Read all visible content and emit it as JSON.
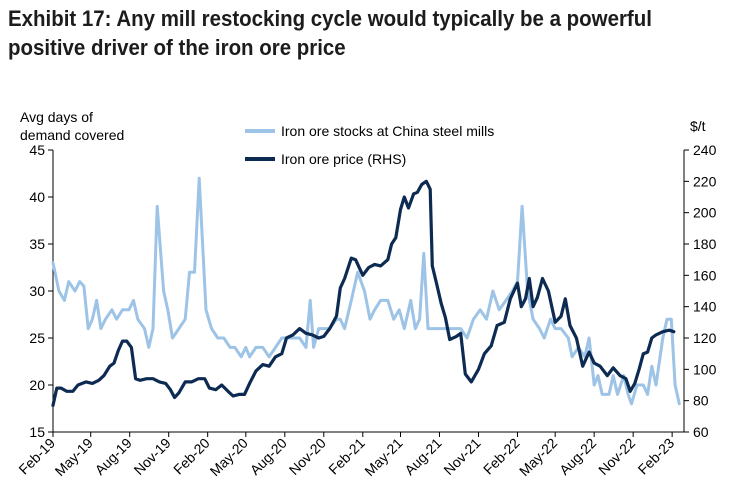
{
  "title_line1": "Exhibit 17: Any mill restocking cycle would typically be a powerful",
  "title_line2": "positive driver of the iron ore price",
  "chart_data": {
    "type": "line",
    "ylabel_left_line1": "Avg days of",
    "ylabel_left_line2": "demand covered",
    "ylabel_right": "$/t",
    "ylim_left": [
      15,
      45
    ],
    "ylim_right": [
      60,
      240
    ],
    "yticks_left": [
      "15",
      "20",
      "25",
      "30",
      "35",
      "40",
      "45"
    ],
    "yticks_right": [
      "60",
      "80",
      "100",
      "120",
      "140",
      "160",
      "180",
      "200",
      "220",
      "240"
    ],
    "xlim": [
      "2019-02-01",
      "2023-03-01"
    ],
    "xticks": [
      {
        "label": "Feb-19",
        "date": "2019-02-01"
      },
      {
        "label": "May-19",
        "date": "2019-05-01"
      },
      {
        "label": "Aug-19",
        "date": "2019-08-01"
      },
      {
        "label": "Nov-19",
        "date": "2019-11-01"
      },
      {
        "label": "Feb-20",
        "date": "2020-02-01"
      },
      {
        "label": "May-20",
        "date": "2020-05-01"
      },
      {
        "label": "Aug-20",
        "date": "2020-08-01"
      },
      {
        "label": "Nov-20",
        "date": "2020-11-01"
      },
      {
        "label": "Feb-21",
        "date": "2021-02-01"
      },
      {
        "label": "May-21",
        "date": "2021-05-01"
      },
      {
        "label": "Aug-21",
        "date": "2021-08-01"
      },
      {
        "label": "Nov-21",
        "date": "2021-11-01"
      },
      {
        "label": "Feb-22",
        "date": "2022-02-01"
      },
      {
        "label": "May-22",
        "date": "2022-05-01"
      },
      {
        "label": "Aug-22",
        "date": "2022-08-01"
      },
      {
        "label": "Nov-22",
        "date": "2022-11-01"
      },
      {
        "label": "Feb-23",
        "date": "2023-02-01"
      }
    ],
    "grid": false,
    "legend_position": "top-center",
    "series": [
      {
        "name": "Iron ore stocks at China steel mills",
        "axis": "left",
        "color": "#9dc3e6",
        "points": [
          [
            "2019-02-01",
            33
          ],
          [
            "2019-02-15",
            30
          ],
          [
            "2019-02-28",
            29
          ],
          [
            "2019-03-10",
            31
          ],
          [
            "2019-03-25",
            30
          ],
          [
            "2019-04-05",
            31
          ],
          [
            "2019-04-15",
            30.5
          ],
          [
            "2019-04-25",
            26
          ],
          [
            "2019-05-05",
            27
          ],
          [
            "2019-05-15",
            29
          ],
          [
            "2019-05-25",
            26
          ],
          [
            "2019-06-05",
            27
          ],
          [
            "2019-06-20",
            28
          ],
          [
            "2019-07-01",
            27
          ],
          [
            "2019-07-15",
            28
          ],
          [
            "2019-07-30",
            28
          ],
          [
            "2019-08-10",
            29
          ],
          [
            "2019-08-20",
            27
          ],
          [
            "2019-09-05",
            26
          ],
          [
            "2019-09-15",
            24
          ],
          [
            "2019-09-25",
            26
          ],
          [
            "2019-10-05",
            39
          ],
          [
            "2019-10-20",
            30
          ],
          [
            "2019-10-30",
            28
          ],
          [
            "2019-11-10",
            25
          ],
          [
            "2019-11-25",
            26
          ],
          [
            "2019-12-10",
            27
          ],
          [
            "2019-12-20",
            32
          ],
          [
            "2020-01-01",
            32
          ],
          [
            "2020-01-12",
            42
          ],
          [
            "2020-01-20",
            35
          ],
          [
            "2020-01-28",
            28
          ],
          [
            "2020-02-10",
            26
          ],
          [
            "2020-02-25",
            25
          ],
          [
            "2020-03-10",
            25
          ],
          [
            "2020-03-25",
            24
          ],
          [
            "2020-04-05",
            24
          ],
          [
            "2020-04-20",
            23
          ],
          [
            "2020-05-01",
            24
          ],
          [
            "2020-05-10",
            23
          ],
          [
            "2020-05-25",
            24
          ],
          [
            "2020-06-10",
            24
          ],
          [
            "2020-06-25",
            23
          ],
          [
            "2020-07-10",
            24
          ],
          [
            "2020-07-25",
            25
          ],
          [
            "2020-08-05",
            25
          ],
          [
            "2020-08-20",
            25
          ],
          [
            "2020-09-05",
            25
          ],
          [
            "2020-09-20",
            24
          ],
          [
            "2020-09-30",
            29
          ],
          [
            "2020-10-08",
            24
          ],
          [
            "2020-10-20",
            26
          ],
          [
            "2020-11-01",
            26
          ],
          [
            "2020-11-15",
            26
          ],
          [
            "2020-12-01",
            27
          ],
          [
            "2020-12-10",
            27
          ],
          [
            "2020-12-20",
            26
          ],
          [
            "2021-01-05",
            29
          ],
          [
            "2021-01-20",
            32
          ],
          [
            "2021-02-05",
            30
          ],
          [
            "2021-02-18",
            27
          ],
          [
            "2021-03-01",
            28
          ],
          [
            "2021-03-15",
            29
          ],
          [
            "2021-04-01",
            29
          ],
          [
            "2021-04-15",
            27
          ],
          [
            "2021-04-28",
            28
          ],
          [
            "2021-05-10",
            26
          ],
          [
            "2021-05-25",
            29
          ],
          [
            "2021-06-05",
            26
          ],
          [
            "2021-06-15",
            27
          ],
          [
            "2021-06-25",
            34
          ],
          [
            "2021-07-05",
            26
          ],
          [
            "2021-07-20",
            26
          ],
          [
            "2021-08-05",
            26
          ],
          [
            "2021-08-20",
            26
          ],
          [
            "2021-09-05",
            26
          ],
          [
            "2021-09-20",
            26
          ],
          [
            "2021-10-05",
            25
          ],
          [
            "2021-10-20",
            27
          ],
          [
            "2021-11-05",
            28
          ],
          [
            "2021-11-20",
            27
          ],
          [
            "2021-12-05",
            30
          ],
          [
            "2021-12-20",
            28
          ],
          [
            "2022-01-05",
            29
          ],
          [
            "2022-01-20",
            30
          ],
          [
            "2022-02-01",
            31
          ],
          [
            "2022-02-12",
            39
          ],
          [
            "2022-02-25",
            30
          ],
          [
            "2022-03-10",
            27
          ],
          [
            "2022-03-25",
            26
          ],
          [
            "2022-04-05",
            25
          ],
          [
            "2022-04-20",
            27
          ],
          [
            "2022-05-01",
            26
          ],
          [
            "2022-05-15",
            26
          ],
          [
            "2022-06-01",
            25
          ],
          [
            "2022-06-10",
            23
          ],
          [
            "2022-06-25",
            24
          ],
          [
            "2022-07-10",
            23
          ],
          [
            "2022-07-20",
            25
          ],
          [
            "2022-08-01",
            20
          ],
          [
            "2022-08-10",
            21
          ],
          [
            "2022-08-20",
            19
          ],
          [
            "2022-09-05",
            19
          ],
          [
            "2022-09-15",
            21
          ],
          [
            "2022-09-25",
            19
          ],
          [
            "2022-10-10",
            21
          ],
          [
            "2022-10-20",
            19
          ],
          [
            "2022-10-28",
            18
          ],
          [
            "2022-11-10",
            20
          ],
          [
            "2022-11-25",
            20
          ],
          [
            "2022-12-05",
            19
          ],
          [
            "2022-12-15",
            22
          ],
          [
            "2022-12-25",
            20
          ],
          [
            "2023-01-10",
            25
          ],
          [
            "2023-01-20",
            27
          ],
          [
            "2023-01-30",
            27
          ],
          [
            "2023-02-08",
            20
          ],
          [
            "2023-02-18",
            18
          ]
        ]
      },
      {
        "name": "Iron ore price (RHS)",
        "axis": "right",
        "color": "#0d2b52",
        "points": [
          [
            "2019-02-01",
            77
          ],
          [
            "2019-02-10",
            88
          ],
          [
            "2019-02-20",
            88
          ],
          [
            "2019-03-05",
            86
          ],
          [
            "2019-03-20",
            86
          ],
          [
            "2019-04-01",
            90
          ],
          [
            "2019-04-20",
            92
          ],
          [
            "2019-05-05",
            91
          ],
          [
            "2019-05-20",
            93
          ],
          [
            "2019-06-01",
            96
          ],
          [
            "2019-06-15",
            102
          ],
          [
            "2019-06-25",
            104
          ],
          [
            "2019-07-05",
            112
          ],
          [
            "2019-07-15",
            118
          ],
          [
            "2019-07-25",
            118
          ],
          [
            "2019-08-05",
            114
          ],
          [
            "2019-08-15",
            94
          ],
          [
            "2019-08-25",
            93
          ],
          [
            "2019-09-10",
            94
          ],
          [
            "2019-09-25",
            94
          ],
          [
            "2019-10-10",
            92
          ],
          [
            "2019-10-25",
            91
          ],
          [
            "2019-11-05",
            87
          ],
          [
            "2019-11-15",
            82
          ],
          [
            "2019-11-25",
            85
          ],
          [
            "2019-12-10",
            92
          ],
          [
            "2019-12-25",
            92
          ],
          [
            "2020-01-10",
            94
          ],
          [
            "2020-01-25",
            94
          ],
          [
            "2020-02-05",
            88
          ],
          [
            "2020-02-20",
            87
          ],
          [
            "2020-03-05",
            90
          ],
          [
            "2020-03-20",
            86
          ],
          [
            "2020-04-01",
            83
          ],
          [
            "2020-04-15",
            84
          ],
          [
            "2020-04-28",
            84
          ],
          [
            "2020-05-10",
            91
          ],
          [
            "2020-05-25",
            99
          ],
          [
            "2020-06-10",
            103
          ],
          [
            "2020-06-25",
            102
          ],
          [
            "2020-07-10",
            108
          ],
          [
            "2020-07-25",
            110
          ],
          [
            "2020-08-05",
            120
          ],
          [
            "2020-08-20",
            122
          ],
          [
            "2020-09-05",
            126
          ],
          [
            "2020-09-20",
            123
          ],
          [
            "2020-10-05",
            122
          ],
          [
            "2020-10-20",
            120
          ],
          [
            "2020-11-01",
            121
          ],
          [
            "2020-11-15",
            126
          ],
          [
            "2020-12-01",
            134
          ],
          [
            "2020-12-10",
            152
          ],
          [
            "2020-12-20",
            158
          ],
          [
            "2021-01-05",
            171
          ],
          [
            "2021-01-15",
            170
          ],
          [
            "2021-02-01",
            160
          ],
          [
            "2021-02-15",
            165
          ],
          [
            "2021-03-01",
            167
          ],
          [
            "2021-03-15",
            166
          ],
          [
            "2021-04-01",
            170
          ],
          [
            "2021-04-10",
            180
          ],
          [
            "2021-04-20",
            184
          ],
          [
            "2021-05-01",
            202
          ],
          [
            "2021-05-10",
            210
          ],
          [
            "2021-05-20",
            203
          ],
          [
            "2021-06-01",
            212
          ],
          [
            "2021-06-10",
            213
          ],
          [
            "2021-06-20",
            218
          ],
          [
            "2021-07-01",
            220
          ],
          [
            "2021-07-10",
            215
          ],
          [
            "2021-07-15",
            166
          ],
          [
            "2021-07-25",
            155
          ],
          [
            "2021-08-05",
            142
          ],
          [
            "2021-08-15",
            133
          ],
          [
            "2021-08-25",
            119
          ],
          [
            "2021-09-10",
            121
          ],
          [
            "2021-09-20",
            123
          ],
          [
            "2021-10-01",
            97
          ],
          [
            "2021-10-15",
            92
          ],
          [
            "2021-11-01",
            100
          ],
          [
            "2021-11-15",
            110
          ],
          [
            "2021-12-01",
            115
          ],
          [
            "2021-12-15",
            128
          ],
          [
            "2022-01-01",
            130
          ],
          [
            "2022-01-15",
            145
          ],
          [
            "2022-02-01",
            155
          ],
          [
            "2022-02-10",
            140
          ],
          [
            "2022-02-20",
            145
          ],
          [
            "2022-03-01",
            158
          ],
          [
            "2022-03-10",
            140
          ],
          [
            "2022-03-20",
            146
          ],
          [
            "2022-04-01",
            158
          ],
          [
            "2022-04-15",
            150
          ],
          [
            "2022-05-01",
            130
          ],
          [
            "2022-05-15",
            134
          ],
          [
            "2022-05-25",
            145
          ],
          [
            "2022-06-05",
            128
          ],
          [
            "2022-06-20",
            120
          ],
          [
            "2022-07-05",
            102
          ],
          [
            "2022-07-20",
            111
          ],
          [
            "2022-08-01",
            104
          ],
          [
            "2022-08-15",
            102
          ],
          [
            "2022-09-01",
            96
          ],
          [
            "2022-09-15",
            101
          ],
          [
            "2022-10-01",
            96
          ],
          [
            "2022-10-15",
            94
          ],
          [
            "2022-10-25",
            86
          ],
          [
            "2022-11-05",
            91
          ],
          [
            "2022-11-15",
            100
          ],
          [
            "2022-11-25",
            110
          ],
          [
            "2022-12-05",
            111
          ],
          [
            "2022-12-15",
            120
          ],
          [
            "2022-12-25",
            122
          ],
          [
            "2023-01-10",
            124
          ],
          [
            "2023-01-25",
            125
          ],
          [
            "2023-02-05",
            124
          ]
        ]
      }
    ]
  }
}
